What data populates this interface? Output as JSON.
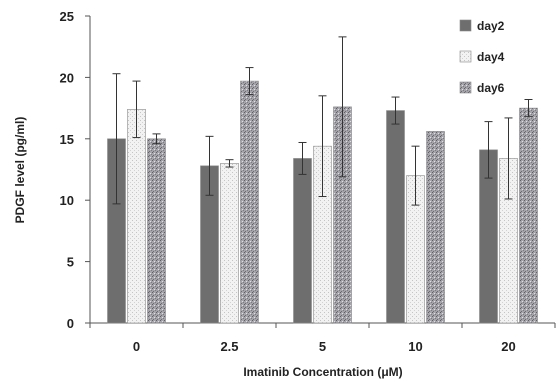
{
  "chart_data": {
    "type": "bar",
    "categories": [
      "0",
      "2.5",
      "5",
      "10",
      "20"
    ],
    "series": [
      {
        "name": "day2",
        "values": [
          15.0,
          12.8,
          13.4,
          17.3,
          14.1
        ],
        "errors": [
          5.3,
          2.4,
          1.3,
          1.1,
          2.3
        ],
        "color": "#6e6e6e",
        "pattern": "solid"
      },
      {
        "name": "day4",
        "values": [
          17.4,
          13.0,
          14.4,
          12.0,
          13.4
        ],
        "errors": [
          2.3,
          0.3,
          4.1,
          2.4,
          3.3
        ],
        "color": "#eeeeee",
        "pattern": "light-speckle"
      },
      {
        "name": "day6",
        "values": [
          15.0,
          19.7,
          17.6,
          15.6,
          17.5
        ],
        "errors": [
          0.4,
          1.1,
          5.7,
          0.0,
          0.7
        ],
        "color": "#9a9aa0",
        "pattern": "dark-speckle"
      }
    ],
    "xlabel": "Imatinib Concentration (μM)",
    "ylabel": "PDGF level (pg/ml)",
    "ylim": [
      0,
      25
    ],
    "yticks": [
      "0",
      "5",
      "10",
      "15",
      "20",
      "25"
    ],
    "grid": false,
    "legend_position": "top-right"
  }
}
